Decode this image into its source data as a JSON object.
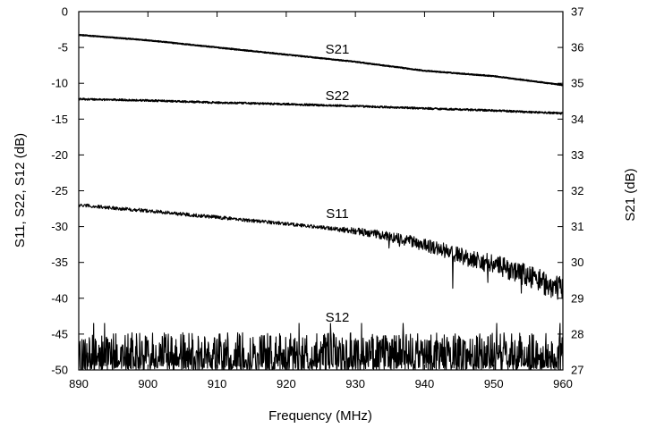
{
  "chart_data": {
    "type": "line",
    "xlabel": "Frequency (MHz)",
    "ylabel_left": "S11, S22, S12 (dB)",
    "ylabel_right": "S21 (dB)",
    "xlim": [
      890,
      960
    ],
    "ylim_left": [
      -50,
      0
    ],
    "ylim_right": [
      27,
      37
    ],
    "x_ticks": [
      "890",
      "900",
      "910",
      "920",
      "930",
      "940",
      "950",
      "960"
    ],
    "y_ticks_left": [
      "0",
      "-5",
      "-10",
      "-15",
      "-20",
      "-25",
      "-30",
      "-35",
      "-40",
      "-45",
      "-50"
    ],
    "y_ticks_right": [
      "37",
      "36",
      "35",
      "34",
      "33",
      "32",
      "31",
      "30",
      "29",
      "28",
      "27"
    ],
    "grid": false,
    "series": [
      {
        "name": "S21",
        "axis": "right",
        "x": [
          890,
          900,
          910,
          920,
          930,
          940,
          950,
          960
        ],
        "y": [
          36.35,
          36.2,
          36.0,
          35.8,
          35.6,
          35.35,
          35.2,
          34.95
        ]
      },
      {
        "name": "S22",
        "axis": "left",
        "x": [
          890,
          900,
          910,
          920,
          930,
          940,
          950,
          960
        ],
        "y": [
          -12.2,
          -12.4,
          -12.7,
          -12.9,
          -13.2,
          -13.5,
          -13.8,
          -14.2
        ]
      },
      {
        "name": "S11",
        "axis": "left",
        "x": [
          890,
          900,
          910,
          920,
          930,
          935,
          940,
          945,
          950,
          955,
          960
        ],
        "y": [
          -27.0,
          -27.8,
          -28.7,
          -29.6,
          -30.6,
          -31.4,
          -32.5,
          -34.0,
          -35.3,
          -36.8,
          -39.0
        ]
      },
      {
        "name": "S12",
        "axis": "left",
        "x": [
          890,
          900,
          910,
          920,
          930,
          940,
          950,
          960
        ],
        "y": [
          -48.0,
          -48.0,
          -48.0,
          -48.0,
          -48.0,
          -48.0,
          -48.0,
          -48.0
        ]
      }
    ]
  }
}
